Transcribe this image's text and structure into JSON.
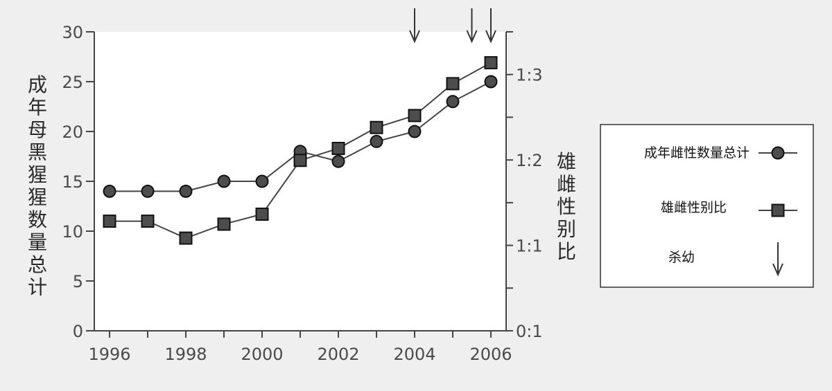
{
  "chart_data": {
    "type": "line",
    "x_ticks": [
      "1996",
      "1998",
      "2000",
      "2002",
      "2004",
      "2006"
    ],
    "xlim": [
      1995.6,
      2006.4
    ],
    "left_axis": {
      "label": "成年母黑猩猩数量总计",
      "ylim": [
        0,
        30
      ],
      "ticks": [
        "0",
        "5",
        "10",
        "15",
        "20",
        "25",
        "30"
      ]
    },
    "right_axis": {
      "label": "雄雌性别比",
      "ticks": [
        "0:1",
        "1:1",
        "1:2",
        "1:3"
      ]
    },
    "series": [
      {
        "name": "成年雌性数量总计",
        "marker": "circle",
        "axis": "left",
        "x": [
          1996,
          1997,
          1998,
          1999,
          2000,
          2001,
          2002,
          2003,
          2004,
          2005,
          2006
        ],
        "y": [
          14,
          14,
          14,
          15,
          15,
          18,
          17,
          19,
          20,
          23,
          25
        ]
      },
      {
        "name": "雄雌性别比",
        "marker": "square",
        "axis": "left",
        "x": [
          1996,
          1997,
          1998,
          1999,
          2000,
          2001,
          2002,
          2003,
          2004,
          2005,
          2006
        ],
        "y": [
          11,
          11,
          9.3,
          10.7,
          11.7,
          17.1,
          18.3,
          20.4,
          21.6,
          24.8,
          26.9
        ]
      }
    ],
    "events": {
      "name": "杀幼",
      "x": [
        2004,
        2005.5,
        2006
      ]
    },
    "legend_position": "right",
    "grid": false
  },
  "colors": {
    "line": "#444444",
    "marker_fill": "#4d4d4d",
    "text": "#4a4a4a",
    "plot_bg": "#ffffff",
    "page_bg": "#efefef"
  }
}
